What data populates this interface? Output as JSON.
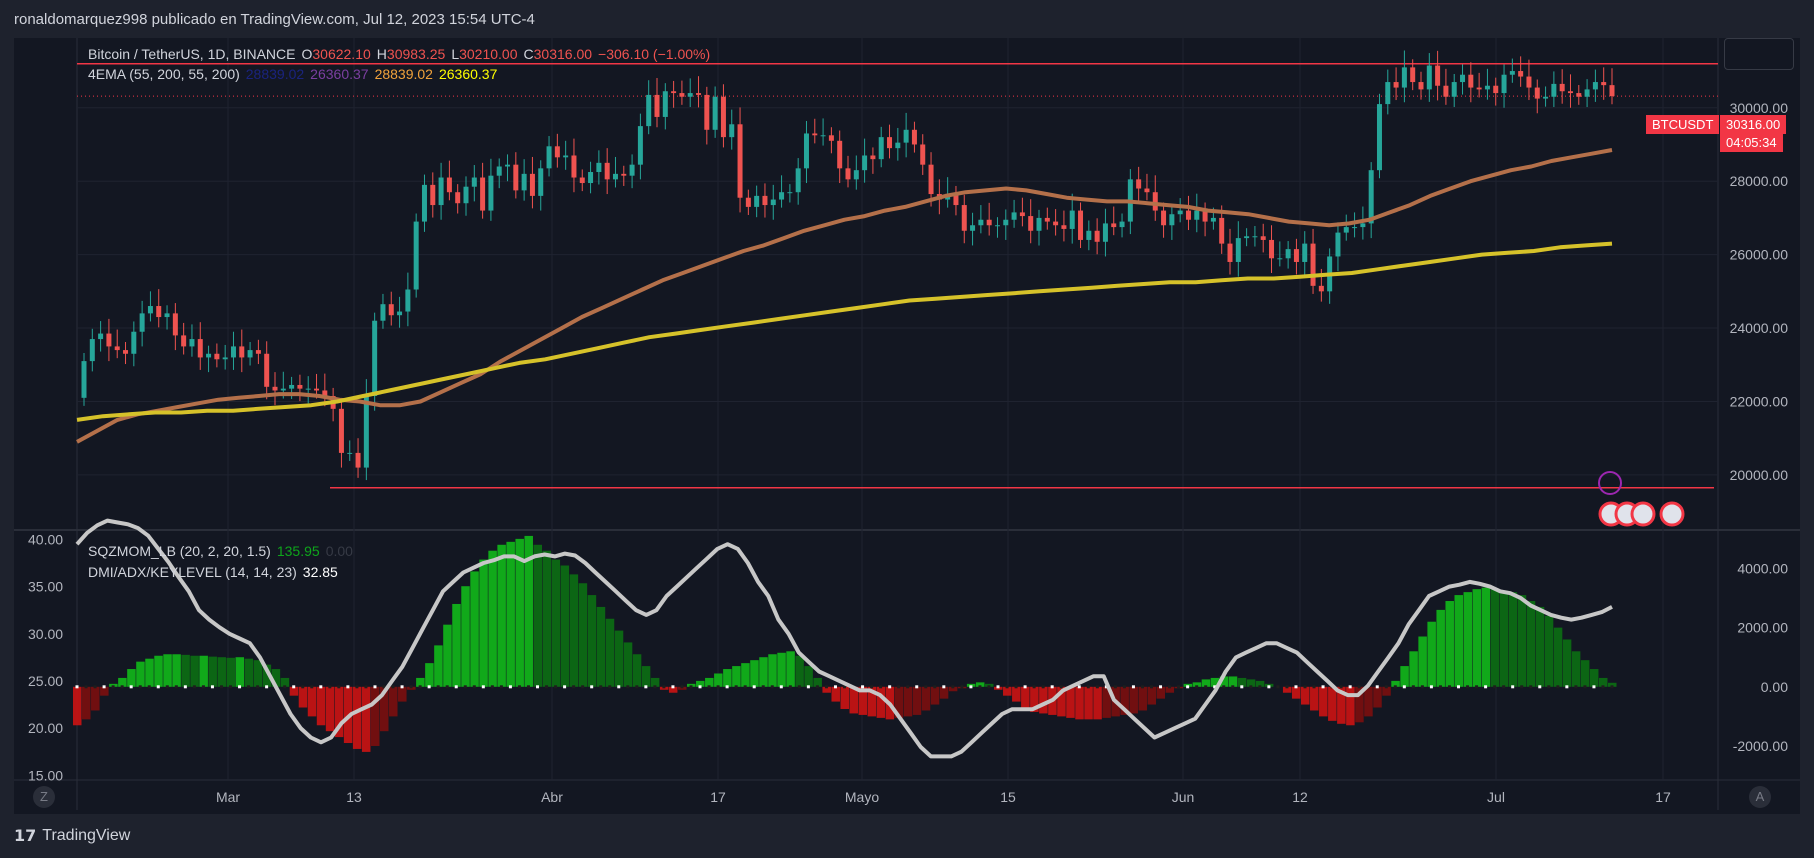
{
  "header": {
    "publish_line": "ronaldomarquez998 publicado en TradingView.com, Jul 12, 2023 15:54 UTC-4"
  },
  "legend": {
    "symbol": "Bitcoin / TetherUS, 1D, BINANCE",
    "o_label": "O",
    "o": "30622.10",
    "h_label": "H",
    "h": "30983.25",
    "l_label": "L",
    "l": "30210.00",
    "c_label": "C",
    "c": "30316.00",
    "change": "−306.10 (−1.00%)",
    "ema_label": "4EMA (55, 200, 55, 200)",
    "ema_values": [
      "28839.02",
      "26360.37",
      "28839.02",
      "26360.37"
    ],
    "ema_colors": [
      "#1a237e",
      "#7b3fa0",
      "#f0a23b",
      "#ffff00"
    ]
  },
  "indicator_legend": {
    "sqz_label": "SQZMOM_LB (20, 2, 20, 1.5)",
    "sqz_value": "135.95",
    "sqz_value2": "0.00",
    "dmi_label": "DMI/ADX/KEYLEVEL (14, 14, 23)",
    "dmi_value": "32.85"
  },
  "price_tag": {
    "symbol": "BTCUSDT",
    "price": "30316.00",
    "countdown": "04:05:34"
  },
  "footer": {
    "brand": "TradingView",
    "mark": "17"
  },
  "corners": {
    "left": "Z",
    "right": "A"
  },
  "colors": {
    "up": "#26a69a",
    "down": "#ef5350",
    "ema55": "#b4704a",
    "ema200": "#d6c22a",
    "level": "#f23645"
  },
  "chart_data": [
    {
      "type": "candlestick",
      "title": "Bitcoin / TetherUS, 1D, BINANCE",
      "x_ticks": [
        "Mar",
        "13",
        "Abr",
        "17",
        "Mayo",
        "15",
        "Jun",
        "12",
        "Jul",
        "17"
      ],
      "y_ticks": [
        20000,
        22000,
        24000,
        26000,
        28000,
        30000
      ],
      "ylim": [
        18500,
        31900
      ],
      "horizontal_levels": [
        31200,
        19650
      ],
      "closes": [
        23100,
        23700,
        23850,
        23500,
        23400,
        23300,
        23900,
        24400,
        24600,
        24300,
        24400,
        23800,
        23500,
        23700,
        23200,
        23300,
        23150,
        23200,
        23500,
        23200,
        23400,
        23300,
        22400,
        22300,
        22350,
        22450,
        22350,
        22350,
        22300,
        22150,
        21800,
        20600,
        20600,
        20200,
        22150,
        24200,
        24650,
        24350,
        24450,
        25050,
        26900,
        27900,
        27350,
        28100,
        27700,
        27400,
        27850,
        28100,
        27200,
        28150,
        28400,
        28450,
        27750,
        28200,
        27600,
        28350,
        28950,
        28650,
        28700,
        28100,
        27950,
        28250,
        28500,
        28050,
        28200,
        28150,
        28450,
        29500,
        30350,
        29750,
        30450,
        30400,
        30300,
        30400,
        30350,
        29400,
        30300,
        29200,
        29550,
        27550,
        27300,
        27600,
        27350,
        27500,
        27700,
        27700,
        28350,
        29300,
        29250,
        29250,
        29100,
        28350,
        28050,
        28300,
        28700,
        28600,
        29200,
        28900,
        29050,
        29400,
        29000,
        28450,
        27650,
        27500,
        27650,
        27350,
        26650,
        26800,
        26950,
        26800,
        26800,
        26950,
        27150,
        27050,
        26650,
        27000,
        26900,
        26800,
        26700,
        27200,
        26400,
        26650,
        26350,
        26850,
        26750,
        26900,
        28050,
        27800,
        27700,
        27200,
        26800,
        27100,
        27200,
        26950,
        27200,
        26900,
        27000,
        26300,
        25800,
        26450,
        26500,
        26500,
        26400,
        25900,
        25900,
        26150,
        25800,
        26300,
        25150,
        25000,
        25950,
        26600,
        26750,
        26750,
        26850,
        28300,
        30100,
        30700,
        30550,
        31100,
        30700,
        30500,
        31150,
        30600,
        30300,
        30700,
        30900,
        30550,
        30500,
        30600,
        30400,
        30900,
        31000,
        30850,
        30550,
        30250,
        30300,
        30650,
        30450,
        30400,
        30300,
        30500,
        30700,
        30616,
        30316
      ],
      "ema55": [
        20900,
        21200,
        21500,
        21650,
        21750,
        21850,
        21950,
        22050,
        22100,
        22150,
        22200,
        22200,
        22150,
        22050,
        22000,
        21900,
        21900,
        22000,
        22250,
        22500,
        22750,
        23100,
        23400,
        23700,
        24000,
        24300,
        24550,
        24800,
        25050,
        25300,
        25500,
        25700,
        25900,
        26100,
        26250,
        26450,
        26650,
        26800,
        26950,
        27050,
        27200,
        27300,
        27450,
        27600,
        27700,
        27750,
        27800,
        27750,
        27650,
        27550,
        27500,
        27450,
        27450,
        27400,
        27350,
        27300,
        27200,
        27150,
        27100,
        27000,
        26900,
        26850,
        26800,
        26850,
        26950,
        27150,
        27350,
        27600,
        27800,
        28000,
        28150,
        28300,
        28400,
        28550,
        28650,
        28750,
        28850
      ],
      "ema200": [
        21500,
        21600,
        21650,
        21700,
        21700,
        21750,
        21750,
        21800,
        21850,
        21900,
        22000,
        22150,
        22300,
        22450,
        22600,
        22750,
        22900,
        23050,
        23150,
        23300,
        23450,
        23600,
        23750,
        23850,
        23950,
        24050,
        24150,
        24250,
        24350,
        24450,
        24550,
        24650,
        24750,
        24800,
        24850,
        24900,
        24950,
        25000,
        25050,
        25100,
        25150,
        25200,
        25250,
        25250,
        25300,
        25350,
        25350,
        25400,
        25450,
        25500,
        25600,
        25700,
        25800,
        25900,
        26000,
        26050,
        26100,
        26200,
        26250,
        26300
      ]
    },
    {
      "type": "line",
      "title": "DMI/ADX/KEYLEVEL (14, 14, 23)",
      "y_ticks": [
        15,
        20,
        25,
        30,
        35,
        40
      ],
      "ylim": [
        14.5,
        41
      ],
      "key_level": 23,
      "values": [
        39.5,
        40.7,
        41.5,
        42,
        41.8,
        41.6,
        41.2,
        40.4,
        39,
        37.6,
        36,
        34.5,
        32.5,
        31.5,
        30.7,
        30,
        29.5,
        29,
        27.5,
        25.5,
        23.5,
        21.5,
        20,
        19,
        18.5,
        19,
        20.5,
        21.5,
        22,
        22.5,
        23.5,
        25,
        26.5,
        28.5,
        30.5,
        32.5,
        34.5,
        35.5,
        36.5,
        37,
        37.5,
        37.8,
        38.2,
        38.2,
        37.7,
        38.2,
        38.4,
        38.2,
        38.5,
        38.3,
        37.5,
        36.5,
        35.5,
        34.5,
        33.5,
        32.5,
        32,
        32.5,
        34,
        35,
        36,
        37,
        38,
        39,
        39.5,
        39,
        37.5,
        35.5,
        34,
        31.5,
        30,
        28,
        27,
        26,
        25.5,
        25,
        24.5,
        24,
        24,
        23.5,
        22.5,
        21,
        19.5,
        18,
        17,
        17,
        17,
        17.5,
        18.5,
        19.5,
        20.5,
        21.5,
        22,
        22,
        22,
        22.5,
        23,
        24,
        24.5,
        25,
        25.5,
        25.5,
        23,
        22,
        21,
        20,
        19,
        19.5,
        20,
        20.5,
        21,
        22.5,
        24,
        26,
        27.5,
        28,
        28.5,
        29,
        29,
        28.5,
        28,
        27,
        26,
        25,
        24,
        23.5,
        23.5,
        24.5,
        26,
        27.5,
        29,
        31,
        32.5,
        34,
        34.5,
        35,
        35.2,
        35.5,
        35.3,
        35,
        34.5,
        34.3,
        33.8,
        33,
        32.5,
        32,
        31.7,
        31.5,
        31.7,
        32,
        32.3,
        32.85
      ]
    },
    {
      "type": "area",
      "title": "SQZMOM_LB (20, 2, 20, 1.5)",
      "y_ticks": [
        -2000,
        0,
        2000,
        4000
      ],
      "ylim": [
        -3150,
        5300
      ],
      "values": [
        -1300,
        -1100,
        -800,
        -300,
        100,
        300,
        600,
        850,
        950,
        1050,
        1100,
        1100,
        1080,
        1050,
        1050,
        1020,
        1000,
        980,
        1000,
        950,
        900,
        750,
        600,
        300,
        -300,
        -700,
        -1000,
        -1300,
        -1500,
        -1700,
        -1900,
        -2100,
        -2200,
        -2000,
        -1500,
        -1000,
        -500,
        -100,
        300,
        800,
        1400,
        2100,
        2800,
        3400,
        3900,
        4300,
        4600,
        4800,
        4900,
        5000,
        5100,
        4800,
        4600,
        4300,
        4100,
        3800,
        3500,
        3100,
        2700,
        2300,
        1900,
        1500,
        1100,
        700,
        300,
        -100,
        -200,
        -100,
        100,
        200,
        300,
        450,
        600,
        700,
        800,
        900,
        1000,
        1100,
        1150,
        1200,
        1050,
        700,
        300,
        -200,
        -500,
        -750,
        -900,
        -950,
        -1000,
        -1050,
        -1100,
        -1050,
        -1000,
        -950,
        -800,
        -600,
        -400,
        -150,
        -50,
        100,
        150,
        100,
        -100,
        -300,
        -500,
        -700,
        -850,
        -900,
        -950,
        -1000,
        -1050,
        -1100,
        -1100,
        -1100,
        -1050,
        -1000,
        -950,
        -900,
        -800,
        -600,
        -400,
        -200,
        -50,
        100,
        150,
        250,
        300,
        350,
        350,
        300,
        250,
        200,
        100,
        0,
        -200,
        -400,
        -600,
        -800,
        -1000,
        -1150,
        -1250,
        -1300,
        -1200,
        -1000,
        -700,
        -300,
        200,
        700,
        1200,
        1700,
        2200,
        2600,
        2900,
        3100,
        3200,
        3300,
        3350,
        3300,
        3250,
        3200,
        3100,
        2900,
        2700,
        2400,
        2000,
        1600,
        1200,
        900,
        600,
        300,
        135.95
      ]
    }
  ]
}
